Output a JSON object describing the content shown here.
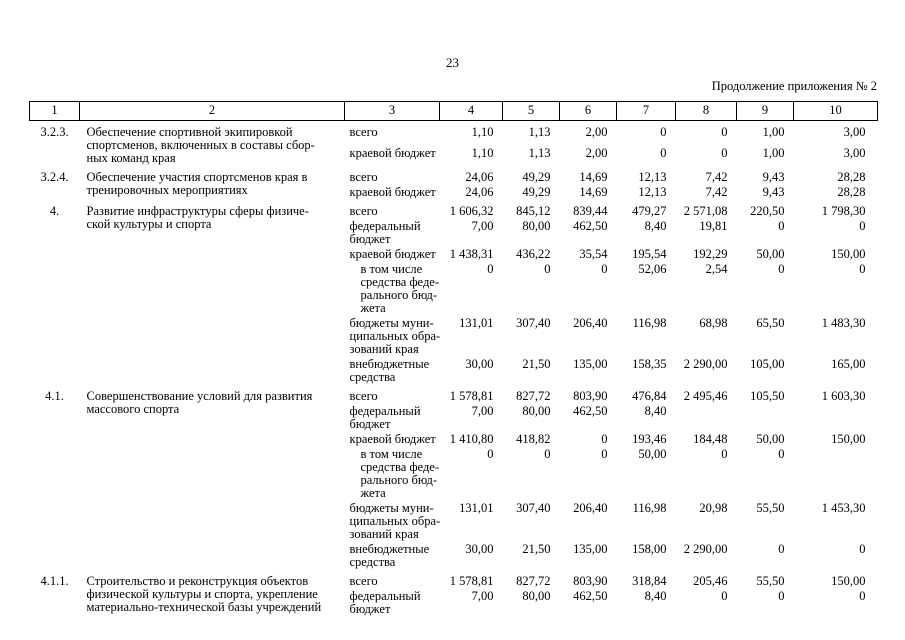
{
  "page": {
    "number": "23",
    "continuation": "Продолжение приложения № 2"
  },
  "table": {
    "columns": [
      "1",
      "2",
      "3",
      "4",
      "5",
      "6",
      "7",
      "8",
      "9",
      "10"
    ],
    "groups": [
      {
        "num": "3.2.3.",
        "description": "Обеспечение спортивной экипировкой\nспортсменов, включенных в составы сбор-\nных команд края",
        "rows": [
          {
            "source": "всего",
            "values": [
              "1,10",
              "1,13",
              "2,00",
              "0",
              "0",
              "1,00",
              "3,00"
            ]
          },
          {
            "source": "краевой бюджет",
            "values": [
              "1,10",
              "1,13",
              "2,00",
              "0",
              "0",
              "1,00",
              "3,00"
            ]
          }
        ]
      },
      {
        "num": "3.2.4.",
        "description": "Обеспечение участия спортсменов края в\nтренировочных мероприятиях",
        "rows": [
          {
            "source": "всего",
            "values": [
              "24,06",
              "49,29",
              "14,69",
              "12,13",
              "7,42",
              "9,43",
              "28,28"
            ]
          },
          {
            "source": "краевой бюджет",
            "values": [
              "24,06",
              "49,29",
              "14,69",
              "12,13",
              "7,42",
              "9,43",
              "28,28"
            ]
          }
        ]
      },
      {
        "num": "4.",
        "description": "Развитие инфраструктуры сферы физиче-\nской культуры и спорта",
        "rows": [
          {
            "source": "всего",
            "values": [
              "1 606,32",
              "845,12",
              "839,44",
              "479,27",
              "2 571,08",
              "220,50",
              "1 798,30"
            ]
          },
          {
            "source": "федеральный\nбюджет",
            "values": [
              "7,00",
              "80,00",
              "462,50",
              "8,40",
              "19,81",
              "0",
              "0"
            ]
          },
          {
            "source": "краевой бюджет",
            "values": [
              "1 438,31",
              "436,22",
              "35,54",
              "195,54",
              "192,29",
              "50,00",
              "150,00"
            ]
          },
          {
            "source": "в том числе\nсредства феде-\nрального бюд-\nжета",
            "indent": true,
            "values": [
              "0",
              "0",
              "0",
              "52,06",
              "2,54",
              "0",
              "0"
            ]
          },
          {
            "source": "бюджеты муни-\nципальных обра-\nзований края",
            "values": [
              "131,01",
              "307,40",
              "206,40",
              "116,98",
              "68,98",
              "65,50",
              "1 483,30"
            ]
          },
          {
            "source": "внебюджетные\nсредства",
            "values": [
              "30,00",
              "21,50",
              "135,00",
              "158,35",
              "2 290,00",
              "105,00",
              "165,00"
            ]
          }
        ]
      },
      {
        "num": "4.1.",
        "description": "Совершенствование условий для развития\nмассового спорта",
        "rows": [
          {
            "source": "всего",
            "values": [
              "1 578,81",
              "827,72",
              "803,90",
              "476,84",
              "2 495,46",
              "105,50",
              "1 603,30"
            ]
          },
          {
            "source": "федеральный\nбюджет",
            "values": [
              "7,00",
              "80,00",
              "462,50",
              "8,40",
              "",
              "",
              ""
            ]
          },
          {
            "source": "краевой бюджет",
            "values": [
              "1 410,80",
              "418,82",
              "0",
              "193,46",
              "184,48",
              "50,00",
              "150,00"
            ]
          },
          {
            "source": "в том числе\nсредства феде-\nрального бюд-\nжета",
            "indent": true,
            "values": [
              "0",
              "0",
              "0",
              "50,00",
              "0",
              "0",
              ""
            ]
          },
          {
            "source": "бюджеты муни-\nципальных обра-\nзований края",
            "values": [
              "131,01",
              "307,40",
              "206,40",
              "116,98",
              "20,98",
              "55,50",
              "1 453,30"
            ]
          },
          {
            "source": "внебюджетные\nсредства",
            "values": [
              "30,00",
              "21,50",
              "135,00",
              "158,00",
              "2 290,00",
              "0",
              "0"
            ]
          }
        ]
      },
      {
        "num": "4.1.1.",
        "description": "Строительство и реконструкция объектов\nфизической культуры и спорта, укрепление\nматериально-технической базы учреждений",
        "rows": [
          {
            "source": "всего",
            "values": [
              "1 578,81",
              "827,72",
              "803,90",
              "318,84",
              "205,46",
              "55,50",
              "150,00"
            ]
          },
          {
            "source": "федеральный\nбюджет",
            "values": [
              "7,00",
              "80,00",
              "462,50",
              "8,40",
              "0",
              "0",
              "0"
            ]
          }
        ]
      }
    ]
  }
}
